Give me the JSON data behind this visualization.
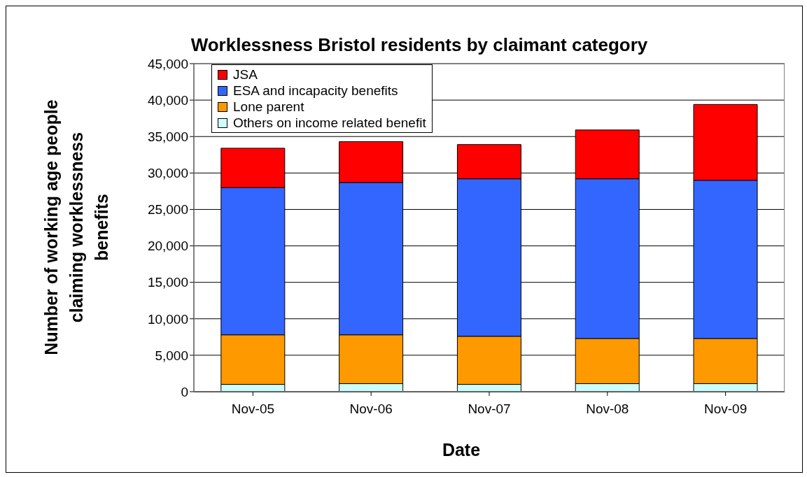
{
  "chart_data": {
    "type": "bar",
    "title": "Worklessness Bristol residents by claimant category",
    "xlabel": "Date",
    "ylabel": "Number of working age people claiming worklessness benefits",
    "categories": [
      "Nov-05",
      "Nov-06",
      "Nov-07",
      "Nov-08",
      "Nov-09"
    ],
    "stacked": true,
    "series": [
      {
        "name": "Others on income related benefit",
        "color": "#ccffff",
        "values": [
          1000,
          1100,
          1000,
          1100,
          1100
        ]
      },
      {
        "name": "Lone parent",
        "color": "#ff9900",
        "values": [
          6800,
          6700,
          6600,
          6200,
          6200
        ]
      },
      {
        "name": "ESA and incapacity benefits",
        "color": "#3366ff",
        "values": [
          20200,
          20900,
          21600,
          21900,
          21700
        ]
      },
      {
        "name": "JSA",
        "color": "#ff0000",
        "values": [
          5400,
          5600,
          4700,
          6700,
          10400
        ]
      }
    ],
    "ylim": [
      0,
      45000
    ],
    "yticks": [
      0,
      {
        "value": 5000,
        "label": "5,000"
      },
      {
        "value": 10000,
        "label": "10,000"
      },
      {
        "value": 15000,
        "label": "15,000"
      },
      {
        "value": 20000,
        "label": "20,000"
      },
      {
        "value": 25000,
        "label": "25,000"
      },
      {
        "value": 30000,
        "label": "30,000"
      },
      {
        "value": 35000,
        "label": "35,000"
      },
      {
        "value": 40000,
        "label": "40,000"
      },
      {
        "value": 45000,
        "label": "45,000"
      }
    ],
    "grid": "y",
    "legend": "top left"
  }
}
